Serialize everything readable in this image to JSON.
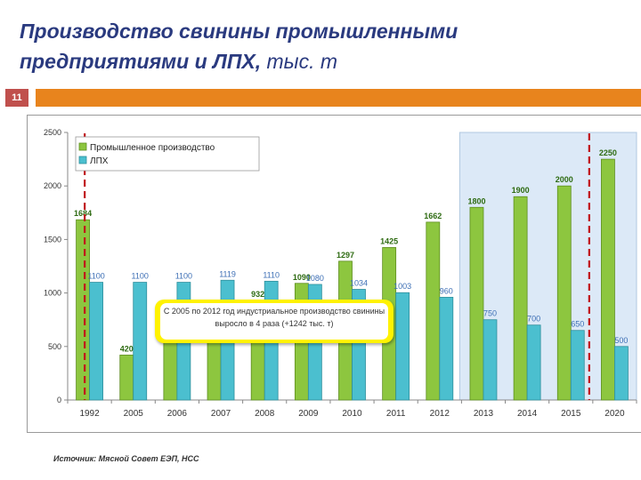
{
  "title_main": "Производство свинины промышленными предприятиями и ЛПХ,",
  "title_unit": "тыс. т",
  "slide_number": "11",
  "source": "Источник: Мясной Совет ЕЭП, НСС",
  "callout_text": "С 2005 по 2012 год индустриальное производство свинины выросло в 4 раза (+1242 тыс. т)",
  "colors": {
    "title": "#2a3a7f",
    "accent_bar": "#e8841d",
    "slide_number_bg": "#c0504d",
    "industrial": "#8dc63f",
    "lph": "#4bbfcf",
    "forecast_bg": "#dce9f7",
    "dashed_line": "#c0141b"
  },
  "chart_data": {
    "type": "bar",
    "categories": [
      "1992",
      "2005",
      "2006",
      "2007",
      "2008",
      "2009",
      "2010",
      "2011",
      "2012",
      "2013",
      "2014",
      "2015",
      "2020"
    ],
    "series": [
      {
        "name": "Промышленное производство",
        "values": [
          1684,
          420,
          542,
          810,
          932,
          1090,
          1297,
          1425,
          1662,
          1800,
          1900,
          2000,
          2250
        ]
      },
      {
        "name": "ЛПХ",
        "values": [
          1100,
          1100,
          1100,
          1119,
          1110,
          1080,
          1034,
          1003,
          960,
          750,
          700,
          650,
          500
        ]
      }
    ],
    "ylim": [
      0,
      2500
    ],
    "yticks": [
      0,
      500,
      1000,
      1500,
      2000,
      2500
    ],
    "legend_position": "top-left",
    "grid": false,
    "forecast_categories": [
      "2013",
      "2014",
      "2015",
      "2020"
    ]
  }
}
